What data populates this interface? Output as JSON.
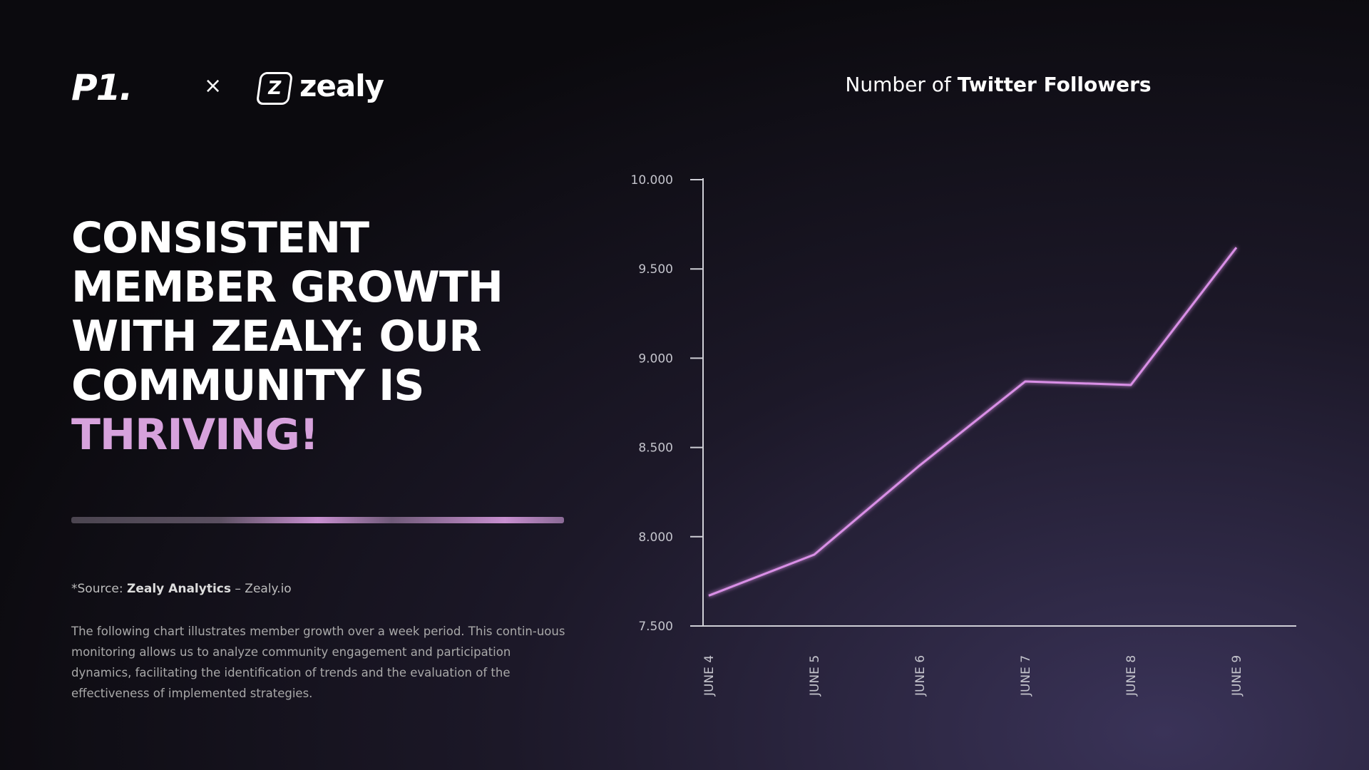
{
  "logos": {
    "left": "P1.",
    "separator": "×",
    "right": "zealy",
    "badge": "Z"
  },
  "headline": {
    "lines": [
      "CONSISTENT",
      "MEMBER GROWTH",
      "WITH ZEALY: OUR",
      "COMMUNITY IS"
    ],
    "highlight": "THRIVING!"
  },
  "source": {
    "prefix": "*Source:",
    "name": "Zealy Analytics",
    "suffix": "– Zealy.io"
  },
  "description": "The following chart illustrates member growth over a week period. This contin-uous monitoring allows us to analyze community engagement and participation dynamics, facilitating the identification of trends and the evaluation of the effectiveness of implemented strategies.",
  "chart_data": {
    "type": "line",
    "title_prefix": "Number of",
    "title": "Twitter Followers",
    "categories": [
      "JUNE 4",
      "JUNE 5",
      "JUNE 6",
      "JUNE 7",
      "JUNE 8",
      "JUNE 9"
    ],
    "series": [
      {
        "name": "Twitter Followers",
        "color": "#d98fe6",
        "values": [
          7670,
          7900,
          8400,
          8870,
          8850,
          9620
        ]
      }
    ],
    "ylim": [
      7500,
      10000
    ],
    "yticks": [
      {
        "value": 7500,
        "label": "7.500"
      },
      {
        "value": 8000,
        "label": "8.000"
      },
      {
        "value": 8500,
        "label": "8.500"
      },
      {
        "value": 9000,
        "label": "9.000"
      },
      {
        "value": 9500,
        "label": "9.500"
      },
      {
        "value": 10000,
        "label": "10.000"
      }
    ],
    "grid": false
  }
}
